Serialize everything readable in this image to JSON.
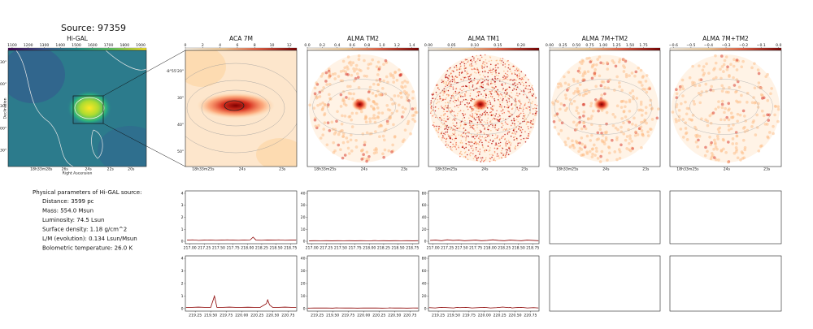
{
  "title": "Source: 97359",
  "maps": [
    {
      "title": "Hi-GAL",
      "colormap": "viridis",
      "lim": [
        1075,
        1935
      ],
      "colorbar_ticks": [
        1100,
        1200,
        1300,
        1400,
        1500,
        1600,
        1700,
        1800,
        1900
      ],
      "xticks": [
        "18h33m28s",
        "26s",
        "24s",
        "22s",
        "20s"
      ],
      "yticks": [
        "-8°54'30\"",
        "55'00\"",
        "30\"",
        "56'00\"",
        "30\""
      ],
      "xlabel": "Right Ascension",
      "ylabel": "Declination"
    },
    {
      "title": "ACA 7M",
      "colormap": "orrd",
      "lim": [
        0,
        12.86
      ],
      "colorbar_ticks": [
        0,
        2,
        4,
        6,
        8,
        10,
        12
      ],
      "xticks": [
        "18h33m25s",
        "24s",
        "23s"
      ],
      "yticks": [
        "-8°55'20\"",
        "30\"",
        "40\"",
        "50\""
      ]
    },
    {
      "title": "ALMA TM2",
      "colormap": "orrd",
      "lim": [
        0,
        1.49
      ],
      "colorbar_ticks": [
        {
          "value": 0,
          "label": "0.0"
        },
        0.2,
        0.4,
        0.6,
        0.8,
        {
          "value": 1,
          "label": "1.0"
        },
        1.2,
        1.4
      ],
      "xticks": [
        "18h33m25s",
        "24s",
        "23s"
      ]
    },
    {
      "title": "ALMA TM1",
      "colormap": "orrd",
      "lim": [
        0,
        0.239
      ],
      "colorbar_ticks": [
        {
          "value": 0,
          "label": "0.00"
        },
        0.05,
        {
          "value": 0.1,
          "label": "0.10"
        },
        0.15,
        {
          "value": 0.2,
          "label": "0.20"
        }
      ],
      "xticks": [
        "18h33m25s",
        "24s",
        "23s"
      ]
    },
    {
      "title": "ALMA 7M+TM2",
      "colormap": "orrd",
      "lim": [
        0,
        2.06
      ],
      "colorbar_ticks": [
        {
          "value": 0,
          "label": "0.00"
        },
        0.25,
        {
          "value": 0.5,
          "label": "0.50"
        },
        0.75,
        {
          "value": 1,
          "label": "1.00"
        },
        1.25,
        {
          "value": 1.5,
          "label": "1.50"
        },
        1.75
      ],
      "xticks": [
        "18h33m25s",
        "24s",
        "23s"
      ]
    },
    {
      "title": "ALMA 7M+TM2",
      "colormap": "orrd",
      "lim": [
        -0.62,
        0.015
      ],
      "colorbar_ticks": [
        {
          "value": -0.6,
          "label": "−0.6"
        },
        {
          "value": -0.5,
          "label": "−0.5"
        },
        {
          "value": -0.4,
          "label": "−0.4"
        },
        {
          "value": -0.3,
          "label": "−0.3"
        },
        {
          "value": -0.2,
          "label": "−0.2"
        },
        {
          "value": -0.1,
          "label": "−0.1"
        },
        {
          "value": 0,
          "label": "0.0"
        }
      ],
      "xticks": [
        "18h33m25s",
        "24s",
        "23s"
      ]
    }
  ],
  "parameters": {
    "heading": "Physical parameters of Hi-GAL source:",
    "items": [
      "Distance: 3599 pc",
      "Mass: 554.0 Msun",
      "Luminosity: 74.5 Lsun",
      "Surface density: 1.18 g/cm^2",
      "L/M (evolution): 0.134 Lsun/Msun",
      "Bolometric temperature: 26.0 K"
    ]
  },
  "spectra": [
    [
      {
        "type": "line",
        "color": "#8b0000",
        "xlim": [
          216.92,
          218.86
        ],
        "ylim": [
          -0.2,
          4.2
        ],
        "yticks": [
          0,
          1,
          2,
          3,
          4
        ],
        "xticks": [
          {
            "value": 217,
            "label": "217.00"
          },
          217.25,
          {
            "value": 217.5,
            "label": "217.50"
          },
          217.75,
          {
            "value": 218,
            "label": "218.00"
          },
          218.25,
          {
            "value": 218.5,
            "label": "218.50"
          },
          218.75
        ],
        "x": [
          216.95,
          217.05,
          217.15,
          217.25,
          217.35,
          217.45,
          217.55,
          217.65,
          217.75,
          217.85,
          217.95,
          218.05,
          218.1,
          218.15,
          218.25,
          218.35,
          218.45,
          218.55,
          218.65,
          218.75,
          218.85
        ],
        "values": [
          0.1,
          0.12,
          0.08,
          0.1,
          0.11,
          0.09,
          0.1,
          0.12,
          0.1,
          0.09,
          0.11,
          0.12,
          0.35,
          0.1,
          0.09,
          0.11,
          0.1,
          0.12,
          0.09,
          0.1,
          0.11
        ]
      },
      {
        "type": "line",
        "color": "#8b0000",
        "xlim": [
          216.92,
          218.86
        ],
        "ylim": [
          -2,
          42
        ],
        "yticks": [
          0,
          10,
          20,
          30,
          40
        ],
        "xticks": [
          {
            "value": 217,
            "label": "217.00"
          },
          217.25,
          {
            "value": 217.5,
            "label": "217.50"
          },
          217.75,
          {
            "value": 218,
            "label": "218.00"
          },
          218.25,
          {
            "value": 218.5,
            "label": "218.50"
          },
          218.75
        ],
        "x": [
          216.95,
          217.05,
          217.15,
          217.25,
          217.35,
          217.45,
          217.55,
          217.65,
          217.75,
          217.85,
          217.95,
          218.05,
          218.1,
          218.15,
          218.25,
          218.35,
          218.45,
          218.55,
          218.65,
          218.75,
          218.85
        ],
        "values": [
          0.4,
          0.5,
          0.45,
          0.5,
          0.4,
          0.5,
          0.45,
          0.5,
          0.4,
          0.5,
          0.45,
          0.5,
          0.6,
          0.45,
          0.5,
          0.4,
          0.5,
          0.45,
          0.5,
          0.4,
          0.5
        ]
      },
      {
        "type": "line",
        "color": "#8b0000",
        "xlim": [
          216.92,
          218.86
        ],
        "ylim": [
          -4,
          84
        ],
        "yticks": [
          0,
          20,
          40,
          60,
          80
        ],
        "xticks": [
          {
            "value": 217,
            "label": "217.00"
          },
          217.25,
          {
            "value": 217.5,
            "label": "217.50"
          },
          217.75,
          {
            "value": 218,
            "label": "218.00"
          },
          218.25,
          {
            "value": 218.5,
            "label": "218.50"
          },
          218.75
        ],
        "x": [
          216.95,
          217.05,
          217.15,
          217.25,
          217.35,
          217.45,
          217.55,
          217.65,
          217.75,
          217.85,
          217.95,
          218.05,
          218.1,
          218.15,
          218.25,
          218.35,
          218.45,
          218.55,
          218.65,
          218.75,
          218.85
        ],
        "values": [
          1.5,
          2,
          1,
          2.5,
          1.5,
          2,
          1,
          1.5,
          2,
          1,
          1.5,
          2.5,
          2,
          1.5,
          1,
          2,
          1.5,
          1,
          2,
          1.5,
          1
        ]
      }
    ],
    [
      {
        "type": "line",
        "color": "#8b0000",
        "xlim": [
          219.09,
          220.89
        ],
        "ylim": [
          -0.2,
          4.2
        ],
        "yticks": [
          0,
          1,
          2,
          3,
          4
        ],
        "xticks": [
          219.25,
          {
            "value": 219.5,
            "label": "219.50"
          },
          219.75,
          {
            "value": 220,
            "label": "220.00"
          },
          220.25,
          {
            "value": 220.5,
            "label": "220.50"
          },
          220.75
        ],
        "x": [
          219.1,
          219.2,
          219.3,
          219.4,
          219.5,
          219.56,
          219.6,
          219.7,
          219.8,
          219.9,
          220.0,
          220.1,
          220.2,
          220.3,
          220.4,
          220.42,
          220.45,
          220.5,
          220.6,
          220.7,
          220.8,
          220.88
        ],
        "values": [
          0.1,
          0.1,
          0.12,
          0.1,
          0.1,
          1.0,
          0.1,
          0.1,
          0.12,
          0.1,
          0.1,
          0.11,
          0.1,
          0.1,
          0.4,
          0.7,
          0.3,
          0.1,
          0.1,
          0.12,
          0.1,
          0.1
        ]
      },
      {
        "type": "line",
        "color": "#8b0000",
        "xlim": [
          219.09,
          220.89
        ],
        "ylim": [
          -2,
          42
        ],
        "yticks": [
          0,
          10,
          20,
          30,
          40
        ],
        "xticks": [
          219.25,
          {
            "value": 219.5,
            "label": "219.50"
          },
          219.75,
          {
            "value": 220,
            "label": "220.00"
          },
          220.25,
          {
            "value": 220.5,
            "label": "220.50"
          },
          220.75
        ],
        "x": [
          219.1,
          219.2,
          219.3,
          219.4,
          219.5,
          219.56,
          219.6,
          219.7,
          219.8,
          219.9,
          220.0,
          220.1,
          220.2,
          220.3,
          220.4,
          220.42,
          220.45,
          220.5,
          220.6,
          220.7,
          220.8,
          220.88
        ],
        "values": [
          0.4,
          0.5,
          0.45,
          0.5,
          0.4,
          0.6,
          0.5,
          0.45,
          0.5,
          0.4,
          0.5,
          0.45,
          0.5,
          0.4,
          0.5,
          0.55,
          0.5,
          0.45,
          0.5,
          0.4,
          0.5,
          0.45
        ]
      },
      {
        "type": "line",
        "color": "#8b0000",
        "xlim": [
          219.09,
          220.89
        ],
        "ylim": [
          -4,
          84
        ],
        "yticks": [
          0,
          20,
          40,
          60,
          80
        ],
        "xticks": [
          219.25,
          {
            "value": 219.5,
            "label": "219.50"
          },
          219.75,
          {
            "value": 220,
            "label": "220.00"
          },
          220.25,
          {
            "value": 220.5,
            "label": "220.50"
          },
          220.75
        ],
        "x": [
          219.1,
          219.2,
          219.3,
          219.4,
          219.5,
          219.56,
          219.6,
          219.7,
          219.8,
          219.9,
          220.0,
          220.1,
          220.2,
          220.3,
          220.4,
          220.42,
          220.45,
          220.5,
          220.6,
          220.7,
          220.8,
          220.88
        ],
        "values": [
          1.5,
          1,
          2,
          1.5,
          1,
          2,
          1.5,
          2,
          1,
          1.5,
          2,
          1,
          1.5,
          2.5,
          1.5,
          2,
          1,
          1.5,
          2,
          1,
          1.5,
          1
        ]
      }
    ]
  ]
}
